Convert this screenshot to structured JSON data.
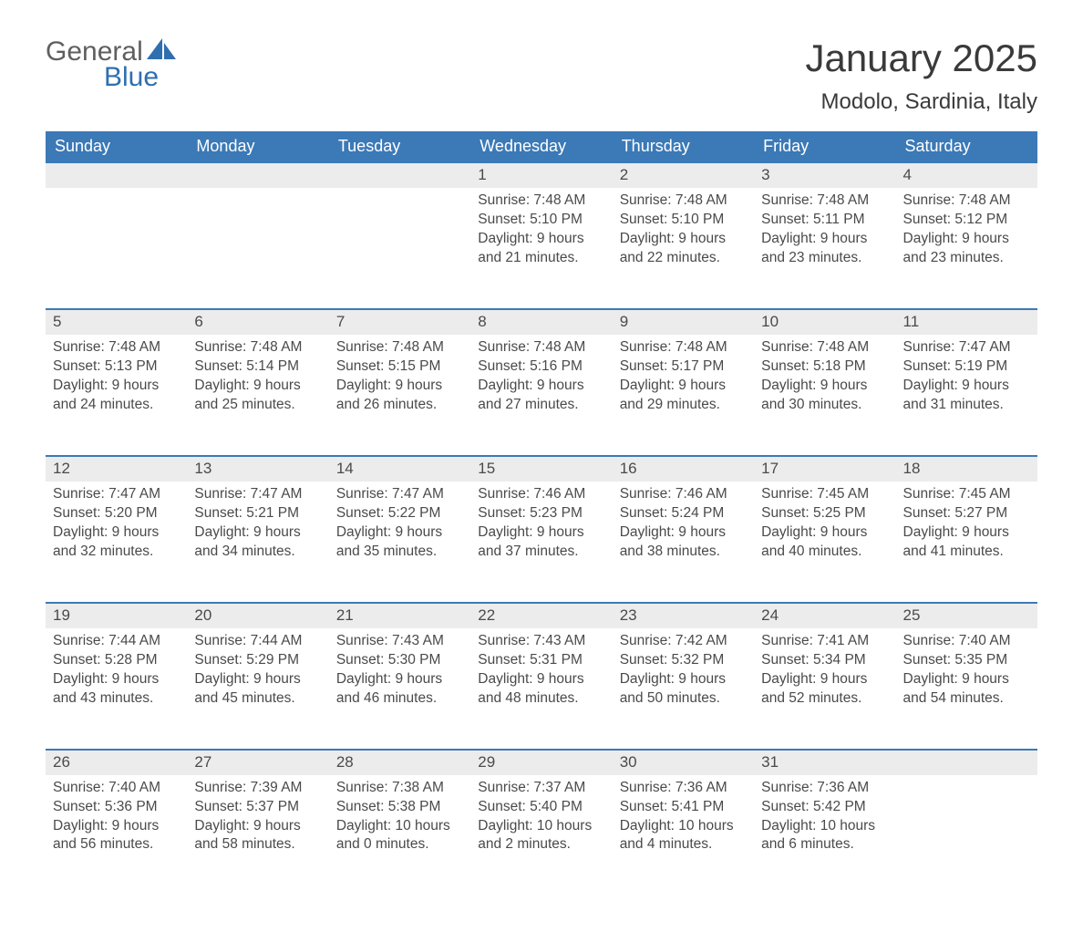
{
  "logo": {
    "word1": "General",
    "word2": "Blue",
    "iconColor": "#2f6fb0",
    "word1Color": "#5f5f5f",
    "word2Color": "#2f6fb0"
  },
  "title": {
    "month": "January 2025",
    "location": "Modolo, Sardinia, Italy"
  },
  "colors": {
    "headerBg": "#3b79b7",
    "headerText": "#ffffff",
    "dayRowBg": "#ececec",
    "borderTop": "#3b79b7",
    "bodyText": "#4a4a4a",
    "pageBg": "#ffffff"
  },
  "dayHeaders": [
    "Sunday",
    "Monday",
    "Tuesday",
    "Wednesday",
    "Thursday",
    "Friday",
    "Saturday"
  ],
  "weeks": [
    [
      null,
      null,
      null,
      {
        "n": "1",
        "sunrise": "7:48 AM",
        "sunset": "5:10 PM",
        "dlh": "9",
        "dlm": "21"
      },
      {
        "n": "2",
        "sunrise": "7:48 AM",
        "sunset": "5:10 PM",
        "dlh": "9",
        "dlm": "22"
      },
      {
        "n": "3",
        "sunrise": "7:48 AM",
        "sunset": "5:11 PM",
        "dlh": "9",
        "dlm": "23"
      },
      {
        "n": "4",
        "sunrise": "7:48 AM",
        "sunset": "5:12 PM",
        "dlh": "9",
        "dlm": "23"
      }
    ],
    [
      {
        "n": "5",
        "sunrise": "7:48 AM",
        "sunset": "5:13 PM",
        "dlh": "9",
        "dlm": "24"
      },
      {
        "n": "6",
        "sunrise": "7:48 AM",
        "sunset": "5:14 PM",
        "dlh": "9",
        "dlm": "25"
      },
      {
        "n": "7",
        "sunrise": "7:48 AM",
        "sunset": "5:15 PM",
        "dlh": "9",
        "dlm": "26"
      },
      {
        "n": "8",
        "sunrise": "7:48 AM",
        "sunset": "5:16 PM",
        "dlh": "9",
        "dlm": "27"
      },
      {
        "n": "9",
        "sunrise": "7:48 AM",
        "sunset": "5:17 PM",
        "dlh": "9",
        "dlm": "29"
      },
      {
        "n": "10",
        "sunrise": "7:48 AM",
        "sunset": "5:18 PM",
        "dlh": "9",
        "dlm": "30"
      },
      {
        "n": "11",
        "sunrise": "7:47 AM",
        "sunset": "5:19 PM",
        "dlh": "9",
        "dlm": "31"
      }
    ],
    [
      {
        "n": "12",
        "sunrise": "7:47 AM",
        "sunset": "5:20 PM",
        "dlh": "9",
        "dlm": "32"
      },
      {
        "n": "13",
        "sunrise": "7:47 AM",
        "sunset": "5:21 PM",
        "dlh": "9",
        "dlm": "34"
      },
      {
        "n": "14",
        "sunrise": "7:47 AM",
        "sunset": "5:22 PM",
        "dlh": "9",
        "dlm": "35"
      },
      {
        "n": "15",
        "sunrise": "7:46 AM",
        "sunset": "5:23 PM",
        "dlh": "9",
        "dlm": "37"
      },
      {
        "n": "16",
        "sunrise": "7:46 AM",
        "sunset": "5:24 PM",
        "dlh": "9",
        "dlm": "38"
      },
      {
        "n": "17",
        "sunrise": "7:45 AM",
        "sunset": "5:25 PM",
        "dlh": "9",
        "dlm": "40"
      },
      {
        "n": "18",
        "sunrise": "7:45 AM",
        "sunset": "5:27 PM",
        "dlh": "9",
        "dlm": "41"
      }
    ],
    [
      {
        "n": "19",
        "sunrise": "7:44 AM",
        "sunset": "5:28 PM",
        "dlh": "9",
        "dlm": "43"
      },
      {
        "n": "20",
        "sunrise": "7:44 AM",
        "sunset": "5:29 PM",
        "dlh": "9",
        "dlm": "45"
      },
      {
        "n": "21",
        "sunrise": "7:43 AM",
        "sunset": "5:30 PM",
        "dlh": "9",
        "dlm": "46"
      },
      {
        "n": "22",
        "sunrise": "7:43 AM",
        "sunset": "5:31 PM",
        "dlh": "9",
        "dlm": "48"
      },
      {
        "n": "23",
        "sunrise": "7:42 AM",
        "sunset": "5:32 PM",
        "dlh": "9",
        "dlm": "50"
      },
      {
        "n": "24",
        "sunrise": "7:41 AM",
        "sunset": "5:34 PM",
        "dlh": "9",
        "dlm": "52"
      },
      {
        "n": "25",
        "sunrise": "7:40 AM",
        "sunset": "5:35 PM",
        "dlh": "9",
        "dlm": "54"
      }
    ],
    [
      {
        "n": "26",
        "sunrise": "7:40 AM",
        "sunset": "5:36 PM",
        "dlh": "9",
        "dlm": "56"
      },
      {
        "n": "27",
        "sunrise": "7:39 AM",
        "sunset": "5:37 PM",
        "dlh": "9",
        "dlm": "58"
      },
      {
        "n": "28",
        "sunrise": "7:38 AM",
        "sunset": "5:38 PM",
        "dlh": "10",
        "dlm": "0"
      },
      {
        "n": "29",
        "sunrise": "7:37 AM",
        "sunset": "5:40 PM",
        "dlh": "10",
        "dlm": "2"
      },
      {
        "n": "30",
        "sunrise": "7:36 AM",
        "sunset": "5:41 PM",
        "dlh": "10",
        "dlm": "4"
      },
      {
        "n": "31",
        "sunrise": "7:36 AM",
        "sunset": "5:42 PM",
        "dlh": "10",
        "dlm": "6"
      },
      null
    ]
  ],
  "labels": {
    "sunrise": "Sunrise: ",
    "sunset": "Sunset: ",
    "daylight1": "Daylight: ",
    "hours": " hours",
    "and": "and ",
    "minutes": " minutes."
  }
}
